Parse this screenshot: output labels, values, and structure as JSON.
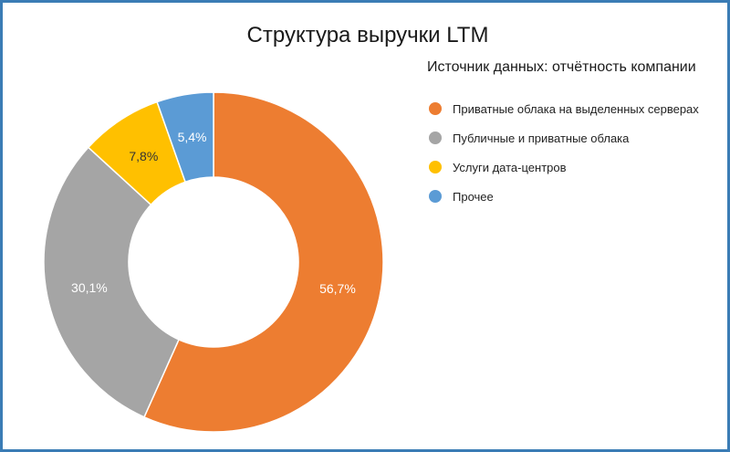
{
  "chart_data": {
    "type": "pie",
    "title": "Структура выручки LTM",
    "legend_title": "Источник данных: отчётность компании",
    "legend_position": "right",
    "donut": true,
    "start_angle_deg": 0,
    "direction": "clockwise",
    "slices": [
      {
        "label": "Приватные облака на выделенных серверах",
        "value": 56.7,
        "display": "56,7%",
        "color": "#ed7d31",
        "label_color": "#ffffff"
      },
      {
        "label": "Публичные и приватные облака",
        "value": 30.1,
        "display": "30,1%",
        "color": "#a5a5a5",
        "label_color": "#ffffff"
      },
      {
        "label": "Услуги дата-центров",
        "value": 7.8,
        "display": "7,8%",
        "color": "#ffc000",
        "label_color": "#333333"
      },
      {
        "label": "Прочее",
        "value": 5.4,
        "display": "5,4%",
        "color": "#5b9bd5",
        "label_color": "#ffffff"
      }
    ]
  }
}
